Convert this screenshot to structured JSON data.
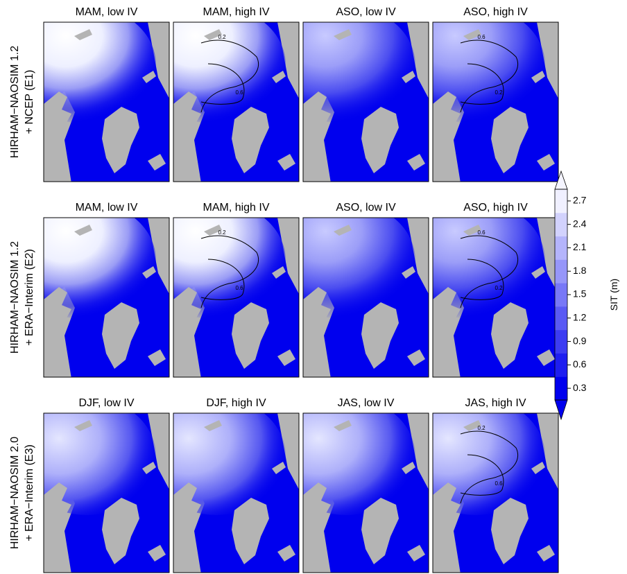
{
  "rows": [
    {
      "label_lines": [
        "HIRHAM−NAOSIM 1.2",
        "+ NCEP (E1)"
      ],
      "panels": [
        {
          "title": "MAM, low IV",
          "contour_labels": []
        },
        {
          "title": "MAM, high IV",
          "contour_labels": [
            "0.2",
            "0.6"
          ]
        },
        {
          "title": "ASO, low IV",
          "contour_labels": []
        },
        {
          "title": "ASO, high IV",
          "contour_labels": [
            "0.6",
            "0.2"
          ]
        }
      ]
    },
    {
      "label_lines": [
        "HIRHAM−NAOSIM 1.2",
        "+ ERA−Interim (E2)"
      ],
      "panels": [
        {
          "title": "MAM, low IV",
          "contour_labels": []
        },
        {
          "title": "MAM, high IV",
          "contour_labels": [
            "0.2",
            "0.6"
          ]
        },
        {
          "title": "ASO, low IV",
          "contour_labels": []
        },
        {
          "title": "ASO, high IV",
          "contour_labels": [
            "0.6",
            "0.2"
          ]
        }
      ]
    },
    {
      "label_lines": [
        "HIRHAM−NAOSIM 2.0",
        "+ ERA−Interim (E3)"
      ],
      "panels": [
        {
          "title": "DJF, low IV",
          "contour_labels": []
        },
        {
          "title": "DJF, high IV",
          "contour_labels": []
        },
        {
          "title": "JAS, low IV",
          "contour_labels": []
        },
        {
          "title": "JAS, high IV",
          "contour_labels": [
            "0.2",
            "0.6"
          ]
        }
      ]
    }
  ],
  "colorbar": {
    "label": "SIT (m)",
    "lim": [
      0.15,
      2.85
    ],
    "ticks": [
      0.3,
      0.6,
      0.9,
      1.2,
      1.5,
      1.8,
      2.1,
      2.4,
      2.7
    ]
  }
}
